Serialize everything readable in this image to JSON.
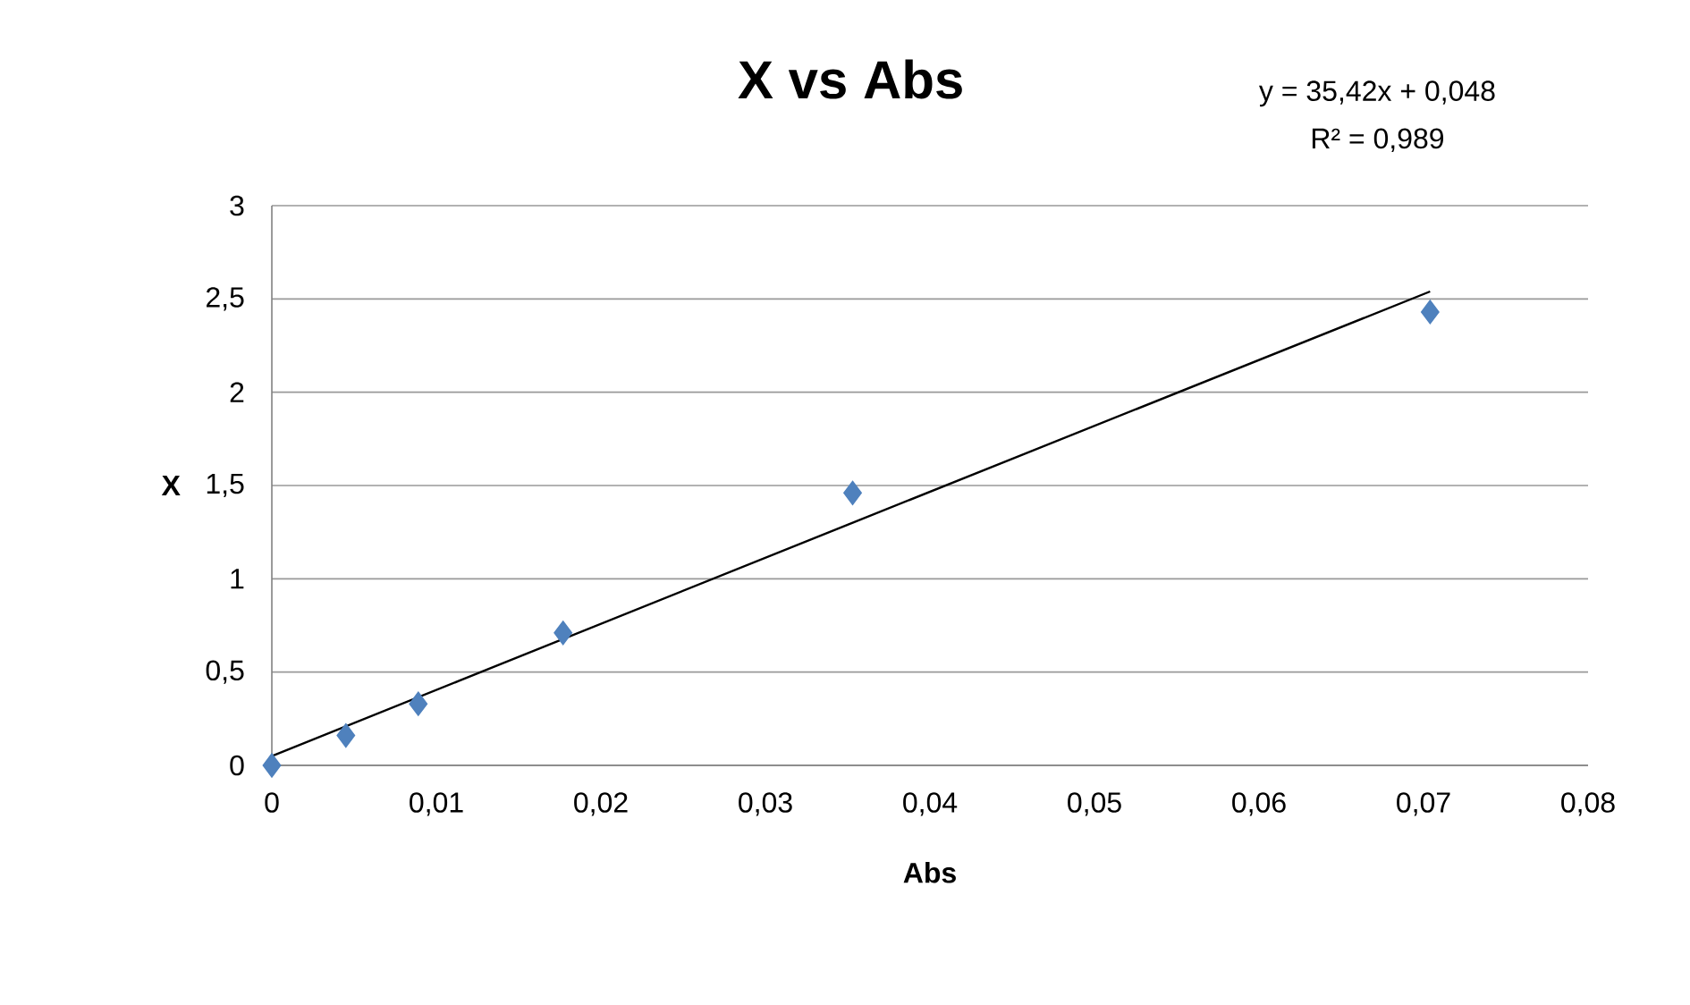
{
  "chart_data": {
    "type": "scatter",
    "title": "X vs Abs",
    "xlabel": "Abs",
    "ylabel": "X",
    "annotations": [
      "y = 35,42x + 0,048",
      "R² = 0,989"
    ],
    "series": [
      {
        "type": "scatter",
        "color": "#4f81bd",
        "marker": "diamond",
        "x": [
          0,
          0.0045,
          0.0089,
          0.0177,
          0.0353,
          0.0704
        ],
        "values": [
          0,
          0.16,
          0.33,
          0.71,
          1.46,
          2.43
        ]
      },
      {
        "type": "line",
        "color": "#000000",
        "marker": "none",
        "line_style": "solid",
        "x": [
          0,
          0.035,
          0.0704
        ],
        "values": [
          0.05,
          1.29,
          2.54
        ]
      }
    ],
    "xlim": [
      0,
      0.08
    ],
    "ylim": [
      0,
      3
    ],
    "xticks": [
      0,
      {
        "value": 0.01,
        "label": "0,01"
      },
      {
        "value": 0.02,
        "label": "0,02"
      },
      {
        "value": 0.03,
        "label": "0,03"
      },
      {
        "value": 0.04,
        "label": "0,04"
      },
      {
        "value": 0.05,
        "label": "0,05"
      },
      {
        "value": 0.06,
        "label": "0,06"
      },
      {
        "value": 0.07,
        "label": "0,07"
      },
      {
        "value": 0.08,
        "label": "0,08"
      }
    ],
    "yticks": [
      0,
      {
        "value": 0.5,
        "label": "0,5"
      },
      1,
      {
        "value": 1.5,
        "label": "1,5"
      },
      2,
      {
        "value": 2.5,
        "label": "2,5"
      },
      3
    ],
    "grid": "y",
    "legend": false
  }
}
